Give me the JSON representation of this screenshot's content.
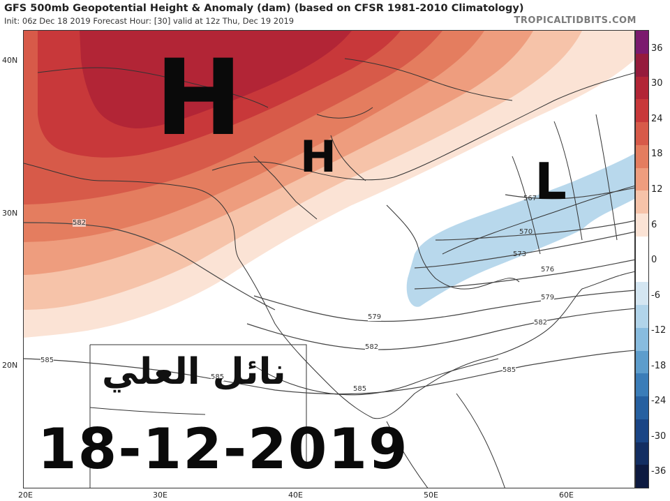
{
  "header": {
    "title": "GFS 500mb Geopotential Height & Anomaly (dam) (based on CFSR 1981-2010 Climatology)",
    "subtitle": "Init: 06z Dec 18 2019   Forecast Hour: [30]   valid at 12z Thu, Dec 19 2019",
    "brand": "TROPICALTIDBITS.COM"
  },
  "axes": {
    "lat_labels": [
      "40N",
      "30N",
      "20N"
    ],
    "lon_labels": [
      "20E",
      "30E",
      "40E",
      "50E",
      "60E"
    ]
  },
  "colorbar": {
    "ticks": [
      "36",
      "30",
      "24",
      "18",
      "12",
      "6",
      "0",
      "-6",
      "-12",
      "-18",
      "-24",
      "-30",
      "-36"
    ],
    "colors": [
      "#7b1a6e",
      "#951b3c",
      "#b22536",
      "#c8383a",
      "#d75a49",
      "#e47d5f",
      "#ee9d7e",
      "#f6c3a9",
      "#fbe3d5",
      "#ffffff",
      "#ffffff",
      "#d4e6f2",
      "#b1d4ea",
      "#88bcdf",
      "#5d9dcc",
      "#3b7db8",
      "#2660a0",
      "#1a4585",
      "#132e62",
      "#0d1a40"
    ]
  },
  "contours": {
    "labels": [
      "582",
      "567",
      "570",
      "573",
      "576",
      "579",
      "579",
      "582",
      "582",
      "585",
      "585",
      "585",
      "585"
    ]
  },
  "annotations": {
    "big_high": "H",
    "small_high": "H",
    "low": "L",
    "arabic_name": "نائل العلي",
    "date": "18-12-2019"
  }
}
